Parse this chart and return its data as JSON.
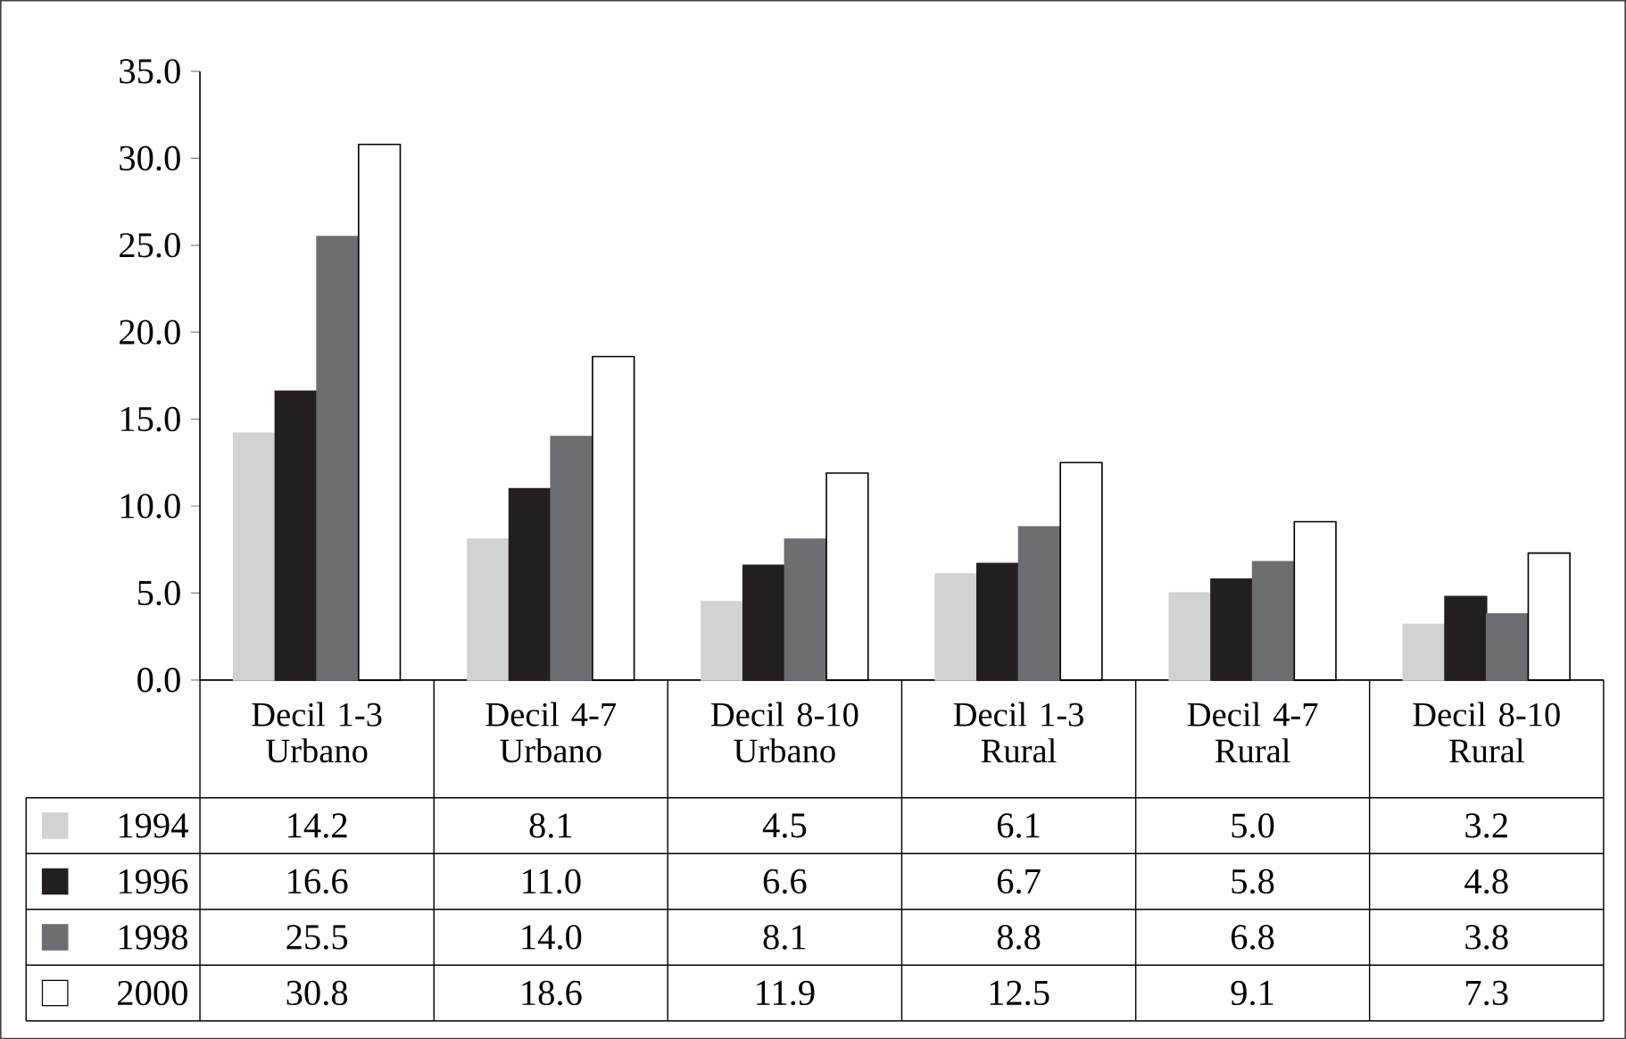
{
  "chart_data": {
    "type": "bar",
    "categories": [
      "Decil 1-3 Urbano",
      "Decil 4-7 Urbano",
      "Decil 8-10 Urbano",
      "Decil 1-3 Rural",
      "Decil 4-7 Rural",
      "Decil 8-10 Rural"
    ],
    "series": [
      {
        "name": "1994",
        "color": "#d1d2d4",
        "values": [
          14.2,
          8.1,
          4.5,
          6.1,
          5.0,
          3.2
        ],
        "value_labels": [
          "14.2",
          "8.1",
          "4.5",
          "6.1",
          "5.0",
          "3.2"
        ]
      },
      {
        "name": "1996",
        "color": "#231f20",
        "values": [
          16.6,
          11.0,
          6.6,
          6.7,
          5.8,
          4.8
        ],
        "value_labels": [
          "16.6",
          "11.0",
          "6.6",
          "6.7",
          "5.8",
          "4.8"
        ]
      },
      {
        "name": "1998",
        "color": "#6d6e71",
        "values": [
          25.5,
          14.0,
          8.1,
          8.8,
          6.8,
          3.8
        ],
        "value_labels": [
          "25.5",
          "14.0",
          "8.1",
          "8.8",
          "6.8",
          "3.8"
        ]
      },
      {
        "name": "2000",
        "color": "#ffffff",
        "values": [
          30.8,
          18.6,
          11.9,
          12.5,
          9.1,
          7.3
        ],
        "value_labels": [
          "30.8",
          "18.6",
          "11.9",
          "12.5",
          "9.1",
          "7.3"
        ]
      }
    ],
    "ylim": [
      0,
      35
    ],
    "yticks": [
      {
        "value": 0,
        "label": "0.0"
      },
      {
        "value": 5,
        "label": "5.0"
      },
      {
        "value": 10,
        "label": "10.0"
      },
      {
        "value": 15,
        "label": "15.0"
      },
      {
        "value": 20,
        "label": "20.0"
      },
      {
        "value": 25,
        "label": "25.0"
      },
      {
        "value": 30,
        "label": "30.0"
      },
      {
        "value": 35,
        "label": "35.0"
      }
    ],
    "legend": "bottom left",
    "grid": false
  }
}
